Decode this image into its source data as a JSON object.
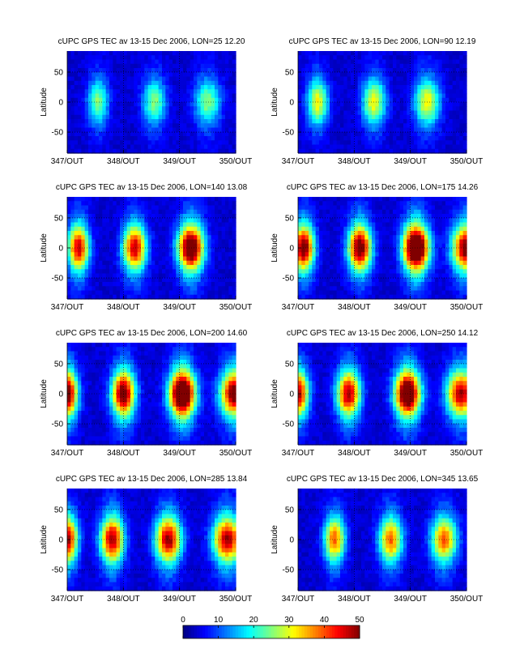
{
  "chart_data": {
    "type": "heatmap",
    "ylabel": "Latitude",
    "xticks": [
      "347/OUT",
      "348/OUT",
      "349/OUT",
      "350/OUT"
    ],
    "yticks": [
      "50",
      "0",
      "-50"
    ],
    "ytick_values": [
      50,
      0,
      -50
    ],
    "ylim": [
      -85,
      85
    ],
    "xlim": [
      347,
      350
    ],
    "colorbar": {
      "ticks": [
        "0",
        "10",
        "20",
        "30",
        "40",
        "50"
      ],
      "tick_values": [
        0,
        10,
        20,
        30,
        40,
        50
      ],
      "range": [
        0,
        50
      ]
    },
    "panels": [
      {
        "title": "cUPC GPS TEC av 13-15 Dec 2006, LON=25  12.20",
        "lon": 25,
        "peak": 22,
        "centers": [
          347.55,
          348.55,
          349.5
        ]
      },
      {
        "title": "cUPC GPS TEC av 13-15 Dec 2006, LON=90  12.19",
        "lon": 90,
        "peak": 28,
        "centers": [
          347.35,
          348.35,
          349.3
        ]
      },
      {
        "title": "cUPC GPS TEC av 13-15 Dec 2006, LON=140  13.08",
        "lon": 140,
        "peak": 44,
        "centers": [
          347.2,
          348.2,
          349.2
        ]
      },
      {
        "title": "cUPC GPS TEC av 13-15 Dec 2006, LON=175  14.26",
        "lon": 175,
        "peak": 50,
        "centers": [
          347.1,
          348.1,
          349.1,
          350.0
        ]
      },
      {
        "title": "cUPC GPS TEC av 13-15 Dec 2006, LON=200  14.60",
        "lon": 200,
        "peak": 50,
        "centers": [
          347.0,
          348.0,
          349.05,
          349.98
        ]
      },
      {
        "title": "cUPC GPS TEC av 13-15 Dec 2006, LON=250  14.12",
        "lon": 250,
        "peak": 46,
        "centers": [
          347.0,
          347.9,
          348.95,
          349.9
        ]
      },
      {
        "title": "cUPC GPS TEC av 13-15 Dec 2006, LON=285  13.84",
        "lon": 285,
        "peak": 46,
        "centers": [
          347.0,
          347.8,
          348.8,
          349.85
        ]
      },
      {
        "title": "cUPC GPS TEC av 13-15 Dec 2006, LON=345  13.65",
        "lon": 345,
        "peak": 36,
        "centers": [
          347.65,
          348.65,
          349.6
        ]
      }
    ]
  }
}
